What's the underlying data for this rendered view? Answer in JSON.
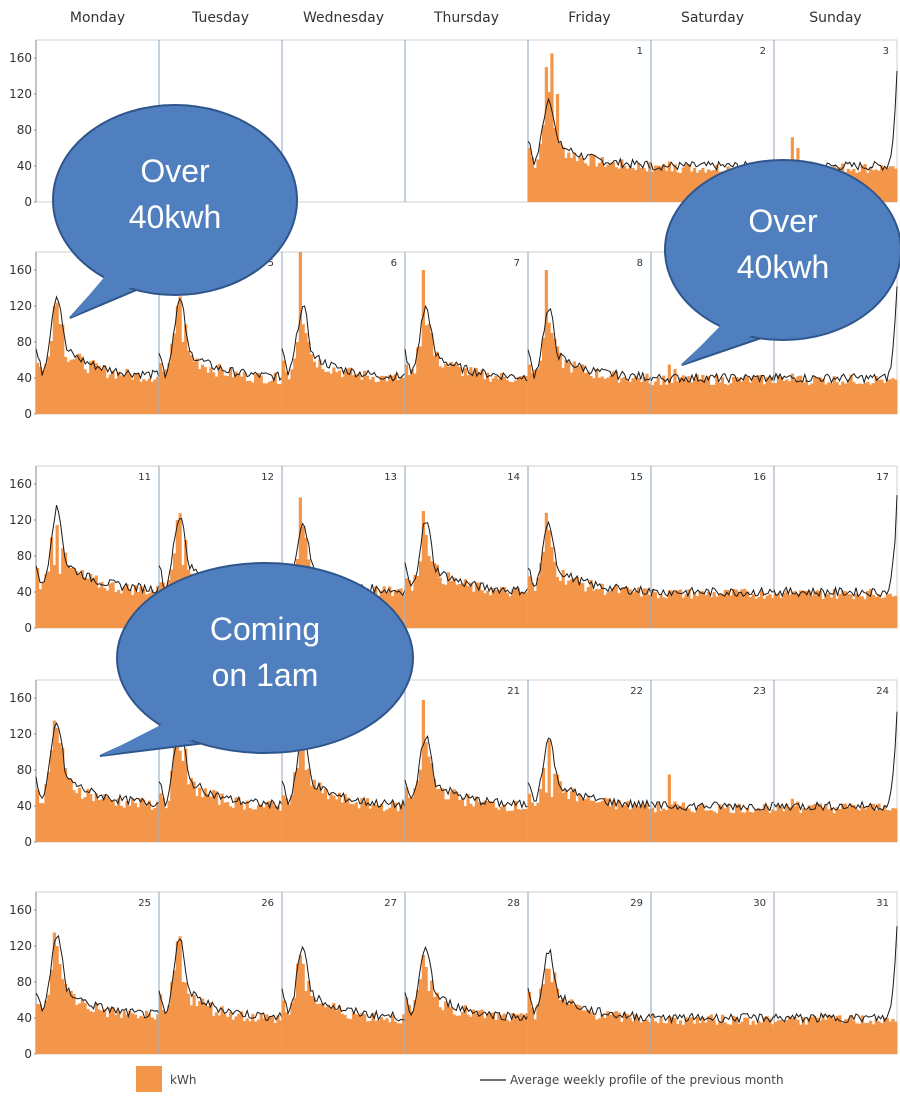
{
  "chart_data": {
    "type": "bar",
    "title": "",
    "days_of_week": [
      "Monday",
      "Tuesday",
      "Wednesday",
      "Thursday",
      "Friday",
      "Saturday",
      "Sunday"
    ],
    "y_ticks": [
      0,
      40,
      80,
      120,
      160
    ],
    "ylim": [
      0,
      180
    ],
    "grid": false,
    "legend_position": "bottom",
    "series": [
      {
        "name": "kWh",
        "color": "#f4964a",
        "kind": "bar"
      },
      {
        "name": "Average weekly profile of the previous month",
        "color": "#1a1a1a",
        "kind": "line"
      }
    ],
    "weeks": [
      {
        "days": [
          "",
          "",
          "",
          "",
          "1",
          "2",
          "3"
        ],
        "active_from": 4,
        "spikes": [
          [],
          [],
          [],
          [],
          [
            150,
            165,
            120
          ],
          [
            45,
            42
          ],
          [
            72,
            60,
            45
          ]
        ]
      },
      {
        "days": [
          "",
          "5",
          "6",
          "7",
          "8",
          "",
          ""
        ],
        "active_from": 0,
        "spikes": [
          [
            120,
            100
          ],
          [
            120,
            80
          ],
          [
            180,
            90
          ],
          [
            160,
            100
          ],
          [
            160,
            90
          ],
          [
            55,
            50
          ],
          [
            45,
            42
          ]
        ]
      },
      {
        "days": [
          "11",
          "12",
          "13",
          "14",
          "15",
          "16",
          "17"
        ],
        "active_from": 0,
        "spikes": [
          [
            70,
            60
          ],
          [
            120,
            70
          ],
          [
            145,
            100
          ],
          [
            130,
            80
          ],
          [
            128,
            90
          ],
          [
            42,
            40
          ],
          [
            40,
            38
          ]
        ]
      },
      {
        "days": [
          "",
          "",
          "",
          "21",
          "22",
          "23",
          "24"
        ],
        "active_from": 0,
        "spikes": [
          [
            135,
            110
          ],
          [
            140,
            90
          ],
          [
            130,
            80
          ],
          [
            158,
            95
          ],
          [
            55,
            50
          ],
          [
            75,
            45
          ],
          [
            48,
            45
          ]
        ]
      },
      {
        "days": [
          "25",
          "26",
          "27",
          "28",
          "29",
          "30",
          "31"
        ],
        "active_from": 0,
        "spikes": [
          [
            135,
            100
          ],
          [
            125,
            80
          ],
          [
            110,
            70
          ],
          [
            110,
            70
          ],
          [
            95,
            80
          ],
          [
            42,
            40
          ],
          [
            40,
            38
          ]
        ]
      }
    ],
    "daily_profile": {
      "Monday": {
        "base": 42,
        "peak": 132
      },
      "Tuesday": {
        "base": 40,
        "peak": 126
      },
      "Wednesday": {
        "base": 40,
        "peak": 118
      },
      "Thursday": {
        "base": 40,
        "peak": 118
      },
      "Friday": {
        "base": 40,
        "peak": 115
      },
      "Saturday": {
        "base": 40,
        "peak": 40
      },
      "Sunday": {
        "base": 40,
        "peak": 40,
        "end": 145
      }
    },
    "callouts": [
      {
        "lines": [
          "Over",
          "40kwh"
        ]
      },
      {
        "lines": [
          "Over",
          "40kwh"
        ]
      },
      {
        "lines": [
          "Coming",
          "on 1am"
        ]
      }
    ]
  },
  "legend": {
    "bar_label": "kWh",
    "line_label": "Average weekly profile of the previous month"
  }
}
